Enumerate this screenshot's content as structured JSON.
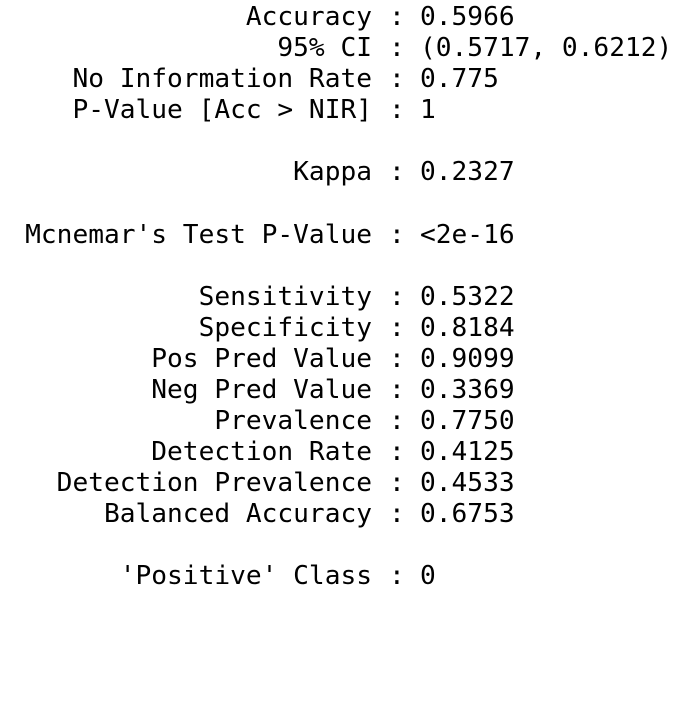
{
  "stats": [
    {
      "label": "Accuracy",
      "value": "0.5966"
    },
    {
      "label": "95% CI",
      "value": "(0.5717, 0.6212)"
    },
    {
      "label": "No Information Rate",
      "value": "0.775"
    },
    {
      "label": "P-Value [Acc > NIR]",
      "value": "1"
    },
    {
      "label": "Kappa",
      "value": "0.2327"
    },
    {
      "label": "Mcnemar's Test P-Value",
      "value": "<2e-16"
    },
    {
      "label": "Sensitivity",
      "value": "0.5322"
    },
    {
      "label": "Specificity",
      "value": "0.8184"
    },
    {
      "label": "Pos Pred Value",
      "value": "0.9099"
    },
    {
      "label": "Neg Pred Value",
      "value": "0.3369"
    },
    {
      "label": "Prevalence",
      "value": "0.7750"
    },
    {
      "label": "Detection Rate",
      "value": "0.4125"
    },
    {
      "label": "Detection Prevalence",
      "value": "0.4533"
    },
    {
      "label": "Balanced Accuracy",
      "value": "0.6753"
    },
    {
      "label": "'Positive' Class",
      "value": "0"
    }
  ],
  "separator": ":"
}
